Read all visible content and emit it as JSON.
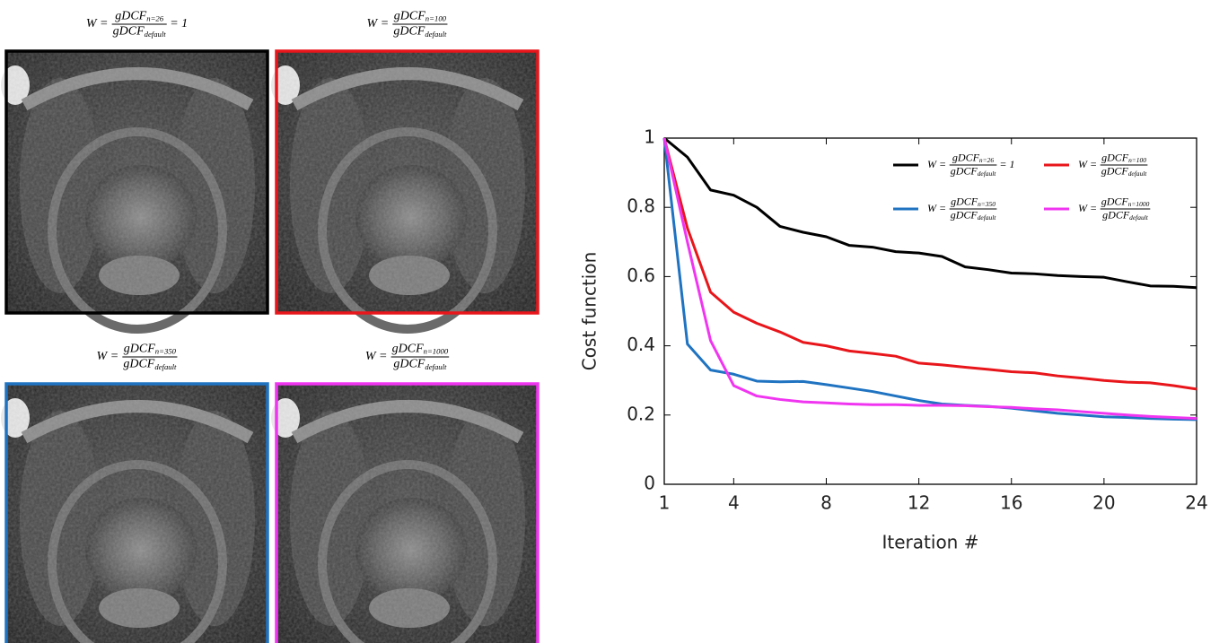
{
  "image_panels": [
    {
      "border_color": "#000000",
      "label": {
        "lhs": "W =",
        "num": "gDCF",
        "num_sub": "n=26",
        "den": "gDCF",
        "den_sub": "default",
        "rhs": "= 1"
      }
    },
    {
      "border_color": "#e8161b",
      "label": {
        "lhs": "W =",
        "num": "gDCF",
        "num_sub": "n=100",
        "den": "gDCF",
        "den_sub": "default"
      }
    },
    {
      "border_color": "#1f73c1",
      "label": {
        "lhs": "W =",
        "num": "gDCF",
        "num_sub": "n=350",
        "den": "gDCF",
        "den_sub": "default"
      }
    },
    {
      "border_color": "#f035f0",
      "label": {
        "lhs": "W =",
        "num": "gDCF",
        "num_sub": "n=1000",
        "den": "gDCF",
        "den_sub": "default"
      }
    }
  ],
  "chart_data": {
    "type": "line",
    "x_label": "Iteration #",
    "y_label": "Cost function",
    "x": [
      1,
      2,
      3,
      4,
      5,
      6,
      7,
      8,
      9,
      10,
      11,
      12,
      13,
      14,
      15,
      16,
      17,
      18,
      19,
      20,
      21,
      22,
      23,
      24
    ],
    "xlim": [
      1,
      24
    ],
    "xticks": [
      1,
      4,
      8,
      12,
      16,
      20,
      24
    ],
    "ylim": [
      0,
      1
    ],
    "yticks": [
      0,
      0.2,
      0.4,
      0.6,
      0.8,
      1
    ],
    "legend": "upper right",
    "series": [
      {
        "name": {
          "lhs": "W =",
          "num": "gDCF",
          "num_sub": "n=26",
          "den": "gDCF",
          "den_sub": "default",
          "rhs": "= 1"
        },
        "color": "#000000",
        "values": [
          1,
          0.945,
          0.85,
          0.835,
          0.8,
          0.745,
          0.728,
          0.715,
          0.69,
          0.685,
          0.672,
          0.668,
          0.658,
          0.628,
          0.62,
          0.61,
          0.608,
          0.603,
          0.6,
          0.598,
          0.585,
          0.573,
          0.572,
          0.568
        ]
      },
      {
        "name": {
          "lhs": "W =",
          "num": "gDCF",
          "num_sub": "n=100",
          "den": "gDCF",
          "den_sub": "default"
        },
        "color": "#e8161b",
        "values": [
          1,
          0.74,
          0.555,
          0.497,
          0.465,
          0.44,
          0.41,
          0.4,
          0.385,
          0.378,
          0.37,
          0.35,
          0.345,
          0.338,
          0.332,
          0.325,
          0.322,
          0.313,
          0.307,
          0.3,
          0.295,
          0.293,
          0.285,
          0.275
        ]
      },
      {
        "name": {
          "lhs": "W =",
          "num": "gDCF",
          "num_sub": "n=350",
          "den": "gDCF",
          "den_sub": "default"
        },
        "color": "#1f73c1",
        "values": [
          1,
          0.405,
          0.33,
          0.318,
          0.298,
          0.296,
          0.297,
          0.288,
          0.278,
          0.268,
          0.255,
          0.242,
          0.232,
          0.228,
          0.225,
          0.22,
          0.212,
          0.205,
          0.2,
          0.195,
          0.193,
          0.19,
          0.188,
          0.187
        ]
      },
      {
        "name": {
          "lhs": "W =",
          "num": "gDCF",
          "num_sub": "n=1000",
          "den": "gDCF",
          "den_sub": "default"
        },
        "color": "#f035f0",
        "values": [
          1,
          0.7,
          0.415,
          0.285,
          0.255,
          0.245,
          0.238,
          0.235,
          0.232,
          0.23,
          0.23,
          0.228,
          0.228,
          0.227,
          0.224,
          0.222,
          0.218,
          0.215,
          0.21,
          0.205,
          0.2,
          0.196,
          0.193,
          0.19
        ]
      }
    ]
  }
}
